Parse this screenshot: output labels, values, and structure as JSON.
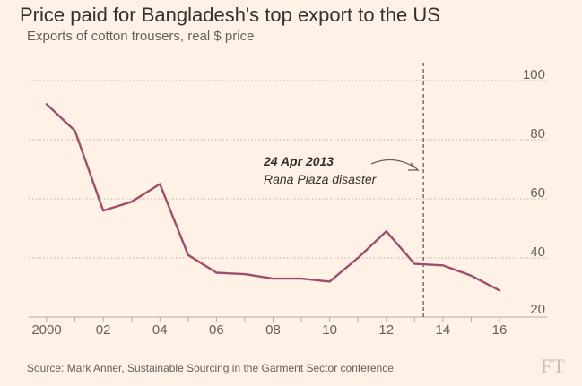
{
  "chart_data": {
    "type": "line",
    "title": "Price paid for Bangladesh's top export to the US",
    "subtitle": "Exports of cotton trousers, real $ price",
    "x": [
      2000,
      2001,
      2002,
      2003,
      2004,
      2005,
      2006,
      2007,
      2008,
      2009,
      2010,
      2011,
      2012,
      2013,
      2014,
      2015,
      2016
    ],
    "series": [
      {
        "name": "Real $ price",
        "color": "#a04d6c",
        "values": [
          92,
          83,
          56,
          59,
          65,
          41,
          35,
          34.5,
          33,
          33,
          32,
          40,
          49,
          38,
          37.5,
          34,
          29
        ]
      }
    ],
    "ylim": [
      20,
      100
    ],
    "yticks": [
      20,
      40,
      60,
      80,
      100
    ],
    "xlim": [
      2000,
      2016
    ],
    "xticks": [
      2000,
      2002,
      2004,
      2006,
      2008,
      2010,
      2012,
      2014,
      2016
    ],
    "xtick_labels": [
      "2000",
      "02",
      "04",
      "06",
      "08",
      "10",
      "12",
      "14",
      "16"
    ],
    "grid": "horizontal dotted",
    "annotation": {
      "date": "24 Apr 2013",
      "label": "Rana Plaza disaster",
      "x": 2013.31
    },
    "source": "Source: Mark Anner, Sustainable Sourcing in the Garment Sector conference",
    "logo": "FT"
  }
}
